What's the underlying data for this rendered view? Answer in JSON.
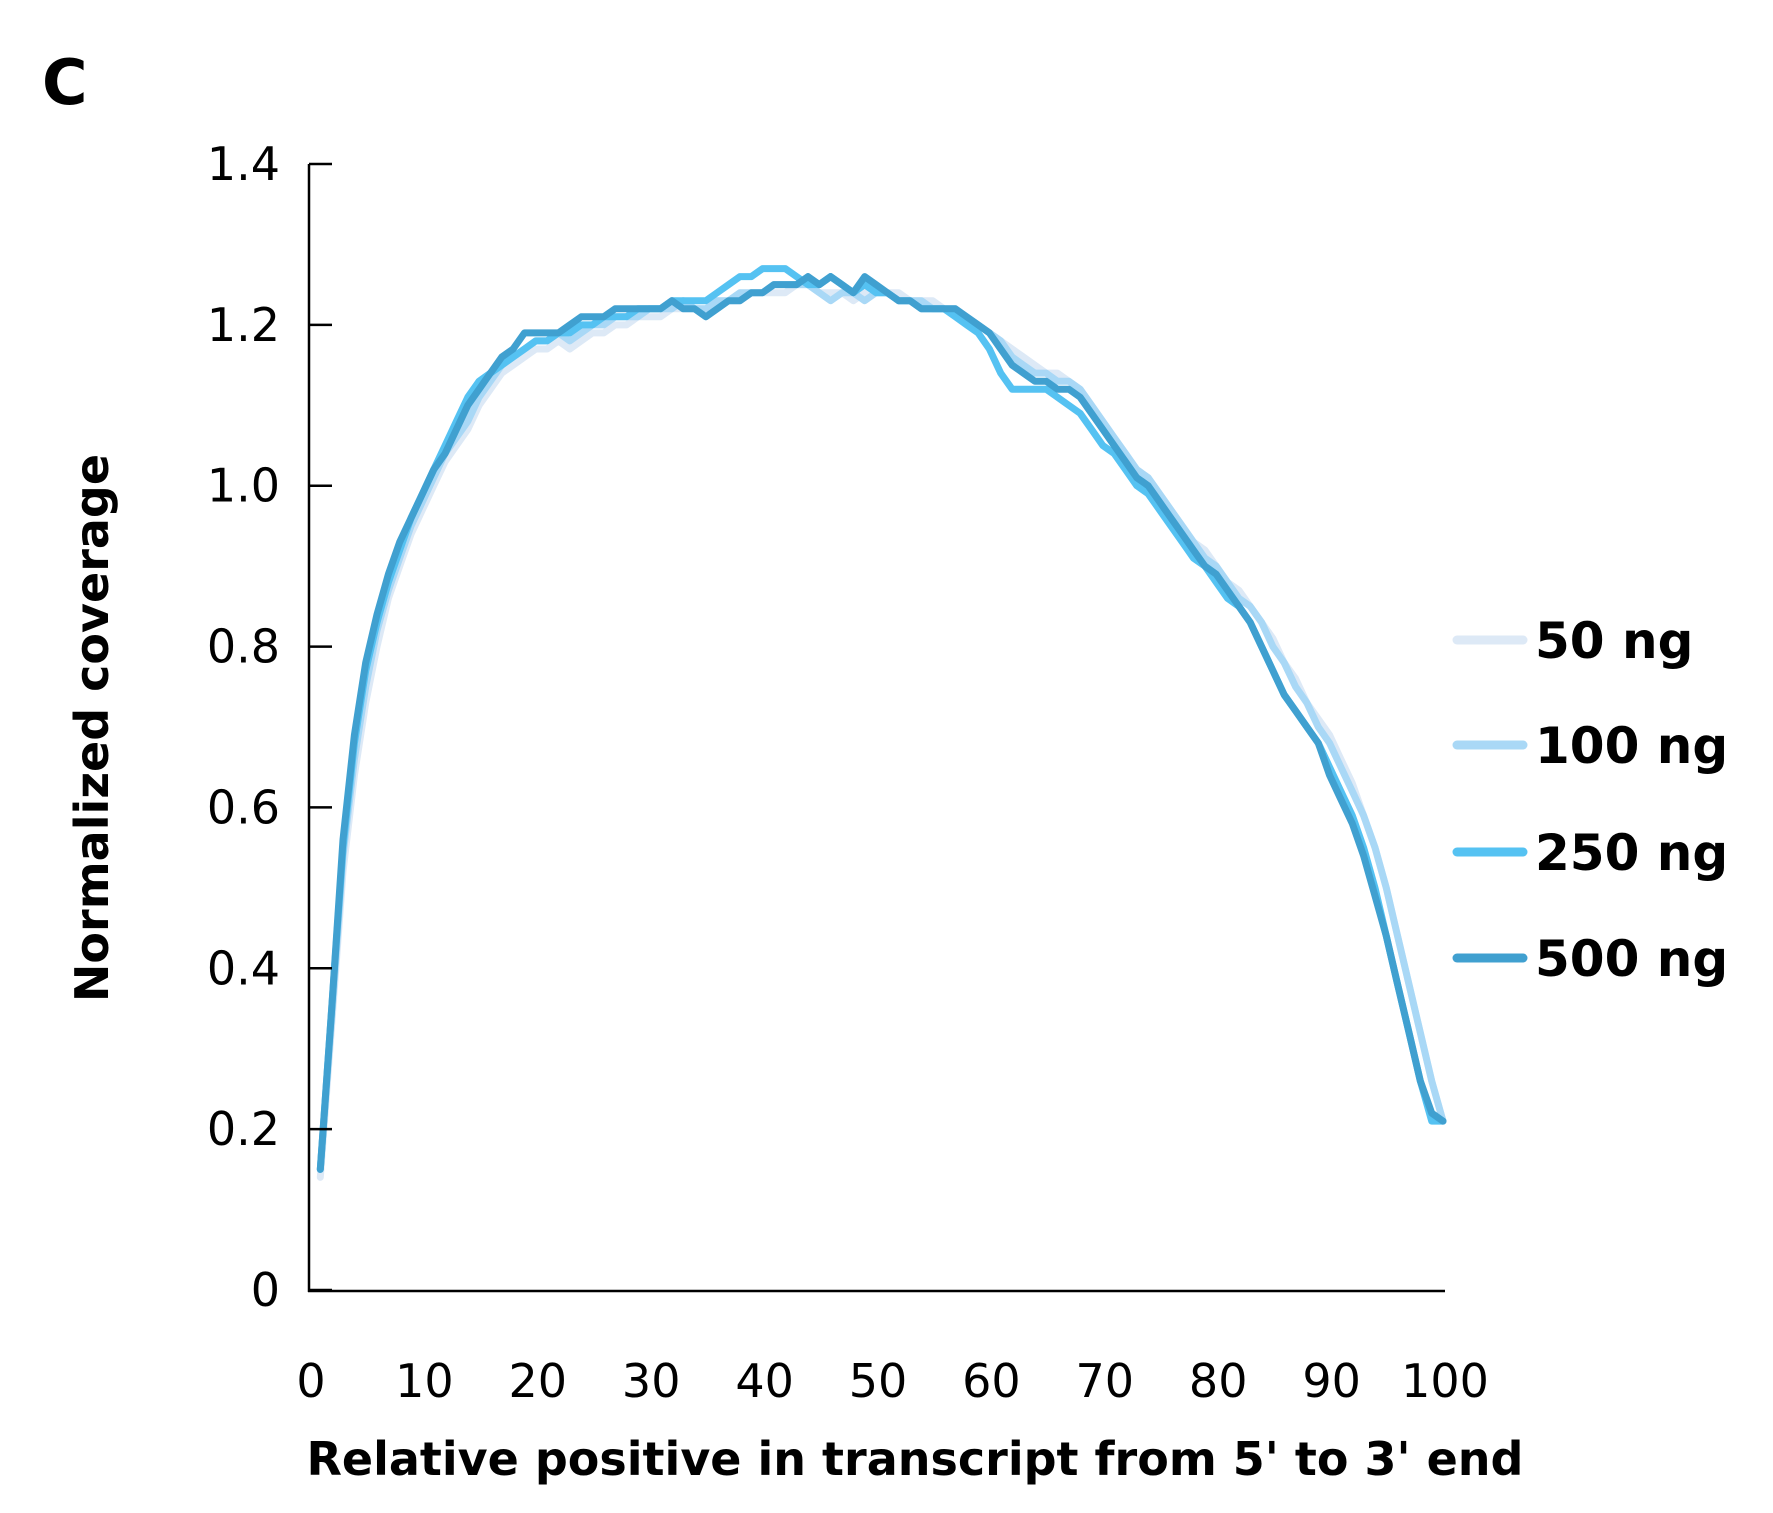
{
  "panel_label": "C",
  "chart_data": {
    "type": "line",
    "title": "",
    "xlabel": "Relative positive in transcript from 5' to 3' end",
    "ylabel": "Normalized coverage",
    "xlim": [
      0,
      100
    ],
    "ylim": [
      0,
      1.4
    ],
    "xticks": [
      0,
      10,
      20,
      30,
      40,
      50,
      60,
      70,
      80,
      90,
      100
    ],
    "yticks": [
      0,
      0.2,
      0.4,
      0.6,
      0.8,
      1.0,
      1.2,
      1.4
    ],
    "ytick_labels": [
      "0",
      "0.2",
      "0.4",
      "0.6",
      "0.8",
      "1.0",
      "1.2",
      "1.4"
    ],
    "grid": false,
    "legend_position": "right",
    "x": [
      1,
      2,
      3,
      4,
      5,
      6,
      7,
      8,
      9,
      10,
      11,
      12,
      13,
      14,
      15,
      16,
      17,
      18,
      19,
      20,
      21,
      22,
      23,
      24,
      25,
      26,
      27,
      28,
      29,
      30,
      31,
      32,
      33,
      34,
      35,
      36,
      37,
      38,
      39,
      40,
      41,
      42,
      43,
      44,
      45,
      46,
      47,
      48,
      49,
      50,
      51,
      52,
      53,
      54,
      55,
      56,
      57,
      58,
      59,
      60,
      61,
      62,
      63,
      64,
      65,
      66,
      67,
      68,
      69,
      70,
      71,
      72,
      73,
      74,
      75,
      76,
      77,
      78,
      79,
      80,
      81,
      82,
      83,
      84,
      85,
      86,
      87,
      88,
      89,
      90,
      91,
      92,
      93,
      94,
      95,
      96,
      97,
      98,
      99,
      100
    ],
    "series": [
      {
        "name": "50 ng",
        "color": "#dde9f6",
        "values": [
          0.14,
          0.33,
          0.52,
          0.64,
          0.73,
          0.8,
          0.86,
          0.9,
          0.94,
          0.97,
          1.0,
          1.03,
          1.05,
          1.07,
          1.1,
          1.12,
          1.14,
          1.15,
          1.16,
          1.17,
          1.17,
          1.18,
          1.17,
          1.18,
          1.19,
          1.19,
          1.2,
          1.2,
          1.21,
          1.21,
          1.21,
          1.22,
          1.22,
          1.22,
          1.22,
          1.23,
          1.23,
          1.23,
          1.24,
          1.24,
          1.24,
          1.24,
          1.25,
          1.25,
          1.24,
          1.24,
          1.24,
          1.23,
          1.24,
          1.24,
          1.24,
          1.24,
          1.23,
          1.23,
          1.23,
          1.22,
          1.22,
          1.21,
          1.2,
          1.19,
          1.18,
          1.17,
          1.16,
          1.15,
          1.14,
          1.14,
          1.13,
          1.12,
          1.1,
          1.08,
          1.06,
          1.04,
          1.02,
          1.01,
          0.99,
          0.97,
          0.95,
          0.93,
          0.92,
          0.9,
          0.88,
          0.87,
          0.85,
          0.83,
          0.81,
          0.78,
          0.76,
          0.73,
          0.71,
          0.69,
          0.66,
          0.63,
          0.59,
          0.55,
          0.5,
          0.44,
          0.38,
          0.32,
          0.26,
          0.21
        ]
      },
      {
        "name": "100 ng",
        "color": "#a9d8f6",
        "values": [
          0.15,
          0.34,
          0.54,
          0.66,
          0.75,
          0.82,
          0.87,
          0.91,
          0.95,
          0.98,
          1.01,
          1.04,
          1.06,
          1.08,
          1.11,
          1.13,
          1.15,
          1.16,
          1.17,
          1.18,
          1.18,
          1.19,
          1.18,
          1.19,
          1.2,
          1.2,
          1.21,
          1.21,
          1.21,
          1.22,
          1.22,
          1.22,
          1.23,
          1.22,
          1.22,
          1.23,
          1.23,
          1.24,
          1.24,
          1.24,
          1.25,
          1.25,
          1.25,
          1.25,
          1.24,
          1.23,
          1.24,
          1.24,
          1.23,
          1.24,
          1.24,
          1.23,
          1.23,
          1.23,
          1.22,
          1.22,
          1.22,
          1.21,
          1.2,
          1.19,
          1.18,
          1.16,
          1.15,
          1.14,
          1.14,
          1.13,
          1.13,
          1.12,
          1.1,
          1.08,
          1.06,
          1.04,
          1.02,
          1.01,
          0.99,
          0.97,
          0.95,
          0.93,
          0.91,
          0.9,
          0.88,
          0.86,
          0.85,
          0.83,
          0.8,
          0.78,
          0.75,
          0.73,
          0.7,
          0.68,
          0.65,
          0.62,
          0.59,
          0.55,
          0.5,
          0.44,
          0.38,
          0.32,
          0.26,
          0.21
        ]
      },
      {
        "name": "250 ng",
        "color": "#55c2f2",
        "values": [
          0.15,
          0.35,
          0.55,
          0.68,
          0.77,
          0.83,
          0.88,
          0.92,
          0.96,
          0.99,
          1.02,
          1.05,
          1.08,
          1.11,
          1.13,
          1.14,
          1.15,
          1.16,
          1.17,
          1.18,
          1.18,
          1.19,
          1.19,
          1.2,
          1.2,
          1.21,
          1.21,
          1.21,
          1.22,
          1.22,
          1.22,
          1.23,
          1.23,
          1.23,
          1.23,
          1.24,
          1.25,
          1.26,
          1.26,
          1.27,
          1.27,
          1.27,
          1.26,
          1.25,
          1.25,
          1.26,
          1.25,
          1.24,
          1.25,
          1.24,
          1.24,
          1.23,
          1.23,
          1.22,
          1.22,
          1.22,
          1.21,
          1.2,
          1.19,
          1.17,
          1.14,
          1.12,
          1.12,
          1.12,
          1.12,
          1.11,
          1.1,
          1.09,
          1.07,
          1.05,
          1.04,
          1.02,
          1.0,
          0.99,
          0.97,
          0.95,
          0.93,
          0.91,
          0.9,
          0.88,
          0.86,
          0.85,
          0.83,
          0.8,
          0.77,
          0.74,
          0.72,
          0.7,
          0.68,
          0.65,
          0.62,
          0.59,
          0.55,
          0.5,
          0.44,
          0.38,
          0.32,
          0.26,
          0.21,
          0.21
        ]
      },
      {
        "name": "500 ng",
        "color": "#40a0d0",
        "values": [
          0.15,
          0.35,
          0.56,
          0.69,
          0.78,
          0.84,
          0.89,
          0.93,
          0.96,
          0.99,
          1.02,
          1.04,
          1.07,
          1.1,
          1.12,
          1.14,
          1.16,
          1.17,
          1.19,
          1.19,
          1.19,
          1.19,
          1.2,
          1.21,
          1.21,
          1.21,
          1.22,
          1.22,
          1.22,
          1.22,
          1.22,
          1.23,
          1.22,
          1.22,
          1.21,
          1.22,
          1.23,
          1.23,
          1.24,
          1.24,
          1.25,
          1.25,
          1.25,
          1.26,
          1.25,
          1.26,
          1.25,
          1.24,
          1.26,
          1.25,
          1.24,
          1.23,
          1.23,
          1.22,
          1.22,
          1.22,
          1.22,
          1.21,
          1.2,
          1.19,
          1.17,
          1.15,
          1.14,
          1.13,
          1.13,
          1.12,
          1.12,
          1.11,
          1.09,
          1.07,
          1.05,
          1.03,
          1.01,
          1.0,
          0.98,
          0.96,
          0.94,
          0.92,
          0.9,
          0.89,
          0.87,
          0.85,
          0.83,
          0.8,
          0.77,
          0.74,
          0.72,
          0.7,
          0.68,
          0.64,
          0.61,
          0.58,
          0.54,
          0.49,
          0.44,
          0.38,
          0.32,
          0.26,
          0.22,
          0.21
        ]
      }
    ]
  }
}
